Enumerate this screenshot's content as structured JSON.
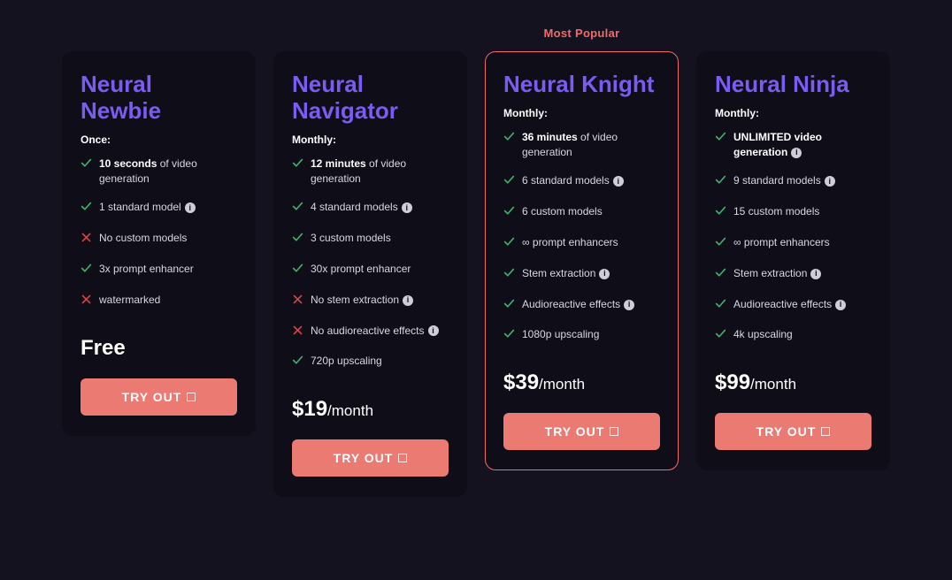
{
  "popular_label": "Most Popular",
  "buttons": {
    "try": "TRY OUT"
  },
  "colors": {
    "background": "#14121f",
    "card_bg": "#0f0d18",
    "title": "#7b5cf0",
    "highlight_border": "#f26a6a",
    "button_bg": "#eb7a72",
    "check": "#3fb26a",
    "cross": "#d84646"
  },
  "plans": [
    {
      "id": "newbie",
      "name": "Neural Newbie",
      "period": "Once:",
      "highlight": false,
      "features": [
        {
          "kind": "check",
          "bold": "10 seconds",
          "text": " of video generation",
          "info": false
        },
        {
          "kind": "check",
          "text": "1 standard model",
          "info": true
        },
        {
          "kind": "cross",
          "text": "No custom models",
          "info": false
        },
        {
          "kind": "check",
          "text": "3x prompt enhancer",
          "info": false
        },
        {
          "kind": "cross",
          "text": "watermarked",
          "info": false
        }
      ],
      "price_main": "Free",
      "price_per": ""
    },
    {
      "id": "navigator",
      "name": "Neural Navigator",
      "period": "Monthly:",
      "highlight": false,
      "features": [
        {
          "kind": "check",
          "bold": "12 minutes",
          "text": " of video generation",
          "info": false
        },
        {
          "kind": "check",
          "text": "4 standard models",
          "info": true
        },
        {
          "kind": "check",
          "text": "3 custom models",
          "info": false
        },
        {
          "kind": "check",
          "text": "30x prompt enhancer",
          "info": false
        },
        {
          "kind": "cross",
          "text": "No stem extraction",
          "info": true
        },
        {
          "kind": "cross",
          "text": "No audioreactive effects",
          "info": true
        },
        {
          "kind": "check",
          "text": "720p upscaling",
          "info": false
        }
      ],
      "price_main": "$19",
      "price_per": "/month"
    },
    {
      "id": "knight",
      "name": "Neural Knight",
      "period": "Monthly:",
      "highlight": true,
      "features": [
        {
          "kind": "check",
          "bold": "36 minutes",
          "text": " of video generation",
          "info": false
        },
        {
          "kind": "check",
          "text": "6 standard models",
          "info": true
        },
        {
          "kind": "check",
          "text": "6 custom models",
          "info": false
        },
        {
          "kind": "check",
          "text": "∞ prompt enhancers",
          "info": false
        },
        {
          "kind": "check",
          "text": "Stem extraction",
          "info": true
        },
        {
          "kind": "check",
          "text": "Audioreactive effects",
          "info": true
        },
        {
          "kind": "check",
          "text": "1080p upscaling",
          "info": false
        }
      ],
      "price_main": "$39",
      "price_per": "/month"
    },
    {
      "id": "ninja",
      "name": "Neural Ninja",
      "period": "Monthly:",
      "highlight": false,
      "features": [
        {
          "kind": "check",
          "bold": "UNLIMITED video generation",
          "text": "",
          "info": true
        },
        {
          "kind": "check",
          "text": "9 standard models",
          "info": true
        },
        {
          "kind": "check",
          "text": "15 custom models",
          "info": false
        },
        {
          "kind": "check",
          "text": "∞ prompt enhancers",
          "info": false
        },
        {
          "kind": "check",
          "text": "Stem extraction",
          "info": true
        },
        {
          "kind": "check",
          "text": "Audioreactive effects",
          "info": true
        },
        {
          "kind": "check",
          "text": "4k upscaling",
          "info": false
        }
      ],
      "price_main": "$99",
      "price_per": "/month"
    }
  ]
}
